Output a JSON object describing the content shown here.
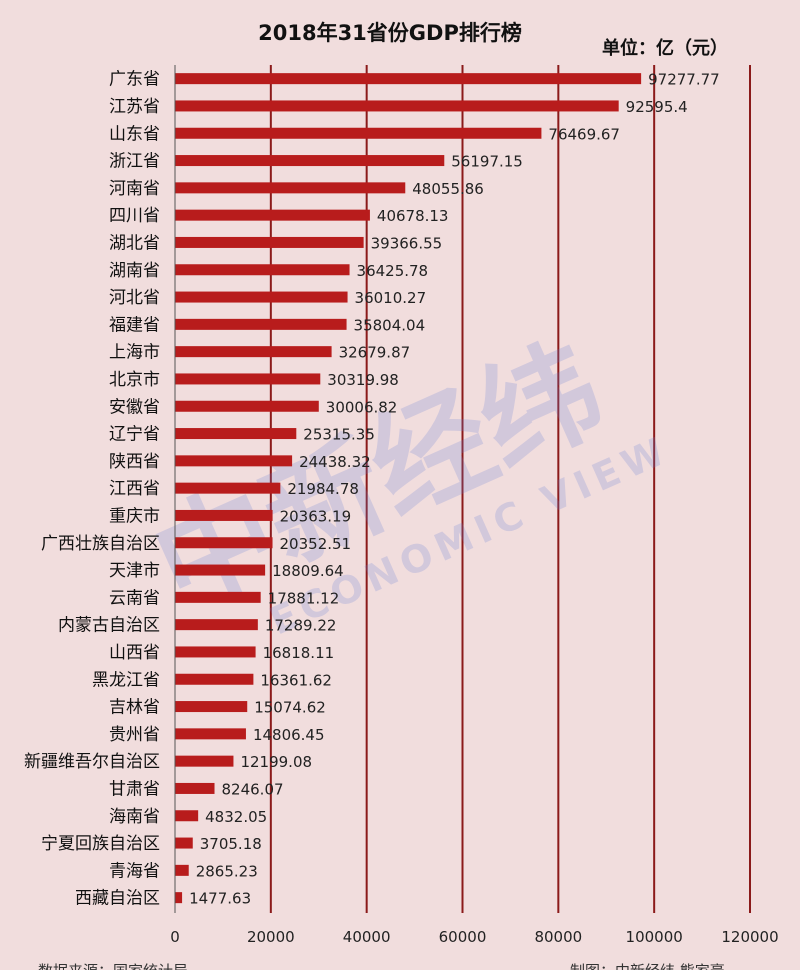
{
  "chart_data": {
    "type": "bar",
    "orientation": "horizontal",
    "title": "2018年31省份GDP排行榜",
    "unit": "单位：亿（元）",
    "categories": [
      "广东省",
      "江苏省",
      "山东省",
      "浙江省",
      "河南省",
      "四川省",
      "湖北省",
      "湖南省",
      "河北省",
      "福建省",
      "上海市",
      "北京市",
      "安徽省",
      "辽宁省",
      "陕西省",
      "江西省",
      "重庆市",
      "广西壮族自治区",
      "天津市",
      "云南省",
      "内蒙古自治区",
      "山西省",
      "黑龙江省",
      "吉林省",
      "贵州省",
      "新疆维吾尔自治区",
      "甘肃省",
      "海南省",
      "宁夏回族自治区",
      "青海省",
      "西藏自治区"
    ],
    "values": [
      97277.77,
      92595.4,
      76469.67,
      56197.15,
      48055.86,
      40678.13,
      39366.55,
      36425.78,
      36010.27,
      35804.04,
      32679.87,
      30319.98,
      30006.82,
      25315.35,
      24438.32,
      21984.78,
      20363.19,
      20352.51,
      18809.64,
      17881.12,
      17289.22,
      16818.11,
      16361.62,
      15074.62,
      14806.45,
      12199.08,
      8246.07,
      4832.05,
      3705.18,
      2865.23,
      1477.63
    ],
    "value_labels": [
      "97277.77",
      "92595.4",
      "76469.67",
      "56197.15",
      "48055.86",
      "40678.13",
      "39366.55",
      "36425.78",
      "36010.27",
      "35804.04",
      "32679.87",
      "30319.98",
      "30006.82",
      "25315.35",
      "24438.32",
      "21984.78",
      "20363.19",
      "20352.51",
      "18809.64",
      "17881.12",
      "17289.22",
      "16818.11",
      "16361.62",
      "15074.62",
      "14806.45",
      "12199.08",
      "8246.07",
      "4832.05",
      "3705.18",
      "2865.23",
      "1477.63"
    ],
    "xlim": [
      0,
      120000
    ],
    "xticks": [
      0,
      20000,
      40000,
      60000,
      80000,
      100000,
      120000
    ],
    "xtick_labels": [
      "0",
      "20000",
      "40000",
      "60000",
      "80000",
      "100000",
      "120000"
    ],
    "grid": "vertical lines",
    "bar_color": "#b81c1c",
    "grid_color": "#8b1a1a"
  },
  "watermark": {
    "logo_text": "中新经纬",
    "subtext": "ECONOMIC VIEW"
  },
  "footer": {
    "left": "数据来源：国家统计局",
    "right": "制图：中新经纬 熊家豪"
  }
}
